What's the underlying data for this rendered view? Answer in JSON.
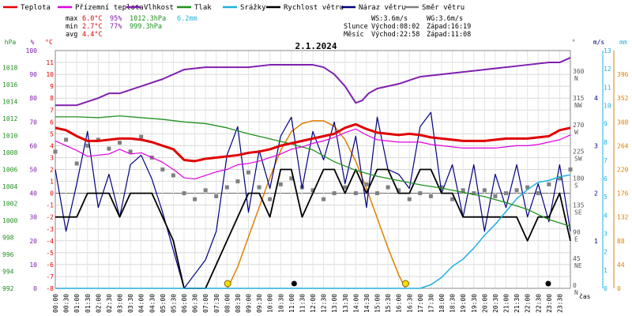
{
  "chart_data": {
    "type": "line",
    "title": "2.1.2024",
    "time_axis_label": "čas",
    "x_start_time": "00:00",
    "x_end_time": "24:00",
    "x_tick_labels": [
      "00:00",
      "00:30",
      "01:00",
      "01:30",
      "02:00",
      "02:30",
      "03:00",
      "03:30",
      "04:00",
      "04:30",
      "05:00",
      "05:30",
      "06:00",
      "06:30",
      "07:00",
      "07:30",
      "08:00",
      "08:30",
      "09:00",
      "09:30",
      "10:00",
      "10:30",
      "11:00",
      "11:30",
      "12:00",
      "12:30",
      "13:00",
      "13:30",
      "14:00",
      "14:30",
      "15:00",
      "15:30",
      "16:00",
      "16:30",
      "17:00",
      "17:30",
      "18:00",
      "18:30",
      "19:00",
      "19:30",
      "20:00",
      "20:30",
      "21:00",
      "21:30",
      "22:00",
      "22:30",
      "23:00",
      "23:30"
    ],
    "legend": [
      {
        "name": "Teplota",
        "color": "#e00000"
      },
      {
        "name": "Přízemní teplota",
        "color": "#e000e0"
      },
      {
        "name": "Vlhkost",
        "color": "#8020b0"
      },
      {
        "name": "Tlak",
        "color": "#209020"
      },
      {
        "name": "Srážky",
        "color": "#20b0e0"
      },
      {
        "name": "Rychlost větru",
        "color": "#000000"
      },
      {
        "name": "Náraz větru",
        "color": "#000080"
      },
      {
        "name": "Směr větru",
        "color": "#808080"
      }
    ],
    "stats": {
      "rows": [
        {
          "label": "max",
          "temp": "6.0°C",
          "hum": "95%",
          "press": "1012.3hPa",
          "rain": "6.2mm"
        },
        {
          "label": "min",
          "temp": "2.7°C",
          "hum": "77%",
          "press": "999.3hPa",
          "rain": ""
        },
        {
          "label": "avg",
          "temp": "4.4°C",
          "hum": "",
          "press": "",
          "rain": ""
        }
      ],
      "ws": "WS:3.6m/s",
      "wg": "WG:3.6m/s",
      "slunce_label": "Slunce",
      "slunce_rise": "Východ:08:02",
      "slunce_set": "Západ:16:19",
      "mesic_label": "Měsíc",
      "mesic_rise": "Východ:22:58",
      "mesic_set": "Západ:11:08"
    },
    "axes": {
      "hpa": {
        "unit": "hPa",
        "min": 992,
        "max": 1020,
        "ticks": [
          992,
          994,
          996,
          998,
          1000,
          1002,
          1004,
          1006,
          1008,
          1010,
          1012,
          1014,
          1016,
          1018
        ]
      },
      "humidity": {
        "unit": "%",
        "min": 0,
        "max": 100,
        "ticks": [
          0,
          10,
          20,
          30,
          40,
          50,
          60,
          70,
          80,
          90,
          100
        ]
      },
      "temperature": {
        "unit": "°C",
        "min": -8,
        "max": 12,
        "ticks": [
          -8,
          -7,
          -6,
          -5,
          -4,
          -3,
          -2,
          -1,
          0,
          1,
          2,
          3,
          4,
          5,
          6,
          7,
          8,
          9,
          10,
          11
        ]
      },
      "direction": {
        "unit": "°",
        "min": 0,
        "max": 400,
        "ticks": [
          {
            "v": 0,
            "l": "0",
            "c": "N"
          },
          {
            "v": 45,
            "l": "45",
            "c": "NE"
          },
          {
            "v": 90,
            "l": "90",
            "c": "E"
          },
          {
            "v": 135,
            "l": "135",
            "c": "SE"
          },
          {
            "v": 180,
            "l": "180",
            "c": "S"
          },
          {
            "v": 225,
            "l": "225",
            "c": "SW"
          },
          {
            "v": 270,
            "l": "270",
            "c": "W"
          },
          {
            "v": 315,
            "l": "315",
            "c": "NW"
          },
          {
            "v": 360,
            "l": "360",
            "c": "N"
          }
        ]
      },
      "wind": {
        "unit": "m/s",
        "min": 0,
        "max": 5,
        "ticks": [
          1,
          2,
          3,
          4
        ]
      },
      "rain": {
        "unit": "mm",
        "min": 0,
        "max": 13,
        "ticks": [
          0,
          1,
          2,
          3,
          4,
          5,
          6,
          7,
          8,
          9,
          10,
          11,
          12,
          13
        ]
      },
      "radiation": {
        "unit": "",
        "min": 0,
        "max": 440,
        "ticks": [
          0,
          44,
          88,
          132,
          176,
          220,
          264,
          308,
          352,
          396
        ]
      }
    },
    "series": [
      {
        "name": "Teplota",
        "axis": "temperature",
        "color": "#e00000",
        "x": [
          0,
          0.5,
          1,
          1.5,
          2,
          2.5,
          3,
          3.5,
          4,
          4.5,
          5,
          5.5,
          6,
          6.5,
          7,
          7.5,
          8,
          8.5,
          9,
          9.5,
          10,
          10.5,
          11,
          11.5,
          12,
          12.5,
          13,
          13.5,
          14,
          14.5,
          15,
          15.5,
          16,
          16.5,
          17,
          17.5,
          18,
          18.5,
          19,
          19.5,
          20,
          20.5,
          21,
          21.5,
          22,
          22.5,
          23,
          23.5,
          24
        ],
        "y": [
          5.5,
          5.3,
          4.8,
          4.4,
          4.4,
          4.5,
          4.6,
          4.6,
          4.5,
          4.3,
          4.0,
          3.7,
          2.8,
          2.7,
          2.9,
          3.0,
          3.1,
          3.2,
          3.4,
          3.5,
          3.7,
          4.0,
          4.2,
          4.4,
          4.6,
          4.8,
          5.0,
          5.5,
          5.8,
          5.4,
          5.1,
          5.0,
          4.9,
          5.0,
          4.9,
          4.7,
          4.6,
          4.5,
          4.4,
          4.4,
          4.4,
          4.5,
          4.6,
          4.6,
          4.6,
          4.7,
          4.8,
          5.3,
          5.5
        ]
      },
      {
        "name": "Přízemní teplota",
        "axis": "temperature",
        "color": "#e000e0",
        "x": [
          0,
          0.5,
          1,
          1.5,
          2,
          2.5,
          3,
          3.5,
          4,
          4.5,
          5,
          5.5,
          6,
          6.5,
          7,
          7.5,
          8,
          8.5,
          9,
          9.5,
          10,
          10.5,
          11,
          11.5,
          12,
          12.5,
          13,
          13.5,
          14,
          14.5,
          15,
          15.5,
          16,
          16.5,
          17,
          17.5,
          18,
          18.5,
          19,
          19.5,
          20,
          20.5,
          21,
          21.5,
          22,
          22.5,
          23,
          23.5,
          24
        ],
        "y": [
          4.4,
          4.0,
          3.6,
          3.1,
          3.2,
          3.3,
          3.7,
          3.3,
          3.4,
          3.0,
          2.6,
          2.0,
          1.3,
          1.2,
          1.5,
          1.8,
          2.0,
          2.4,
          2.5,
          2.7,
          3.0,
          3.3,
          3.7,
          3.9,
          4.2,
          4.4,
          4.7,
          5.1,
          5.4,
          4.9,
          4.5,
          4.4,
          4.3,
          4.3,
          4.3,
          4.1,
          4.0,
          3.9,
          3.8,
          3.8,
          3.8,
          3.8,
          3.9,
          4.0,
          4.0,
          4.1,
          4.3,
          4.5,
          4.9
        ]
      },
      {
        "name": "Vlhkost",
        "axis": "humidity",
        "color": "#8020b0",
        "x": [
          0,
          1,
          2,
          2.5,
          3,
          4,
          5,
          6,
          7,
          8,
          9,
          10,
          11,
          12,
          12.5,
          13,
          13.5,
          14,
          14.3,
          14.6,
          15,
          16,
          17,
          18,
          19,
          20,
          21,
          22,
          23,
          23.5,
          24
        ],
        "y": [
          77,
          77,
          80,
          82,
          82,
          85,
          88,
          92,
          93,
          93,
          93,
          94,
          94,
          94,
          93,
          90,
          85,
          78,
          79,
          82,
          84,
          86,
          89,
          90,
          91,
          92,
          93,
          94,
          95,
          95,
          97
        ]
      },
      {
        "name": "Tlak",
        "axis": "hpa",
        "color": "#209020",
        "x": [
          0,
          1,
          2,
          3,
          4,
          5,
          6,
          7,
          8,
          9,
          10,
          11,
          12,
          13,
          14,
          15,
          16,
          17,
          18,
          19,
          20,
          21,
          22,
          23,
          24
        ],
        "y": [
          1012.2,
          1012.2,
          1012.1,
          1012.3,
          1012.1,
          1011.9,
          1011.6,
          1011.4,
          1010.9,
          1010.2,
          1009.6,
          1009.0,
          1008.3,
          1006.9,
          1005.9,
          1005.2,
          1004.7,
          1004.2,
          1003.8,
          1003.3,
          1002.8,
          1002.1,
          1001.3,
          1000.1,
          999.3
        ]
      },
      {
        "name": "Srážky",
        "axis": "rain",
        "color": "#20b0e0",
        "x": [
          0,
          16.5,
          17,
          17.5,
          18,
          18.5,
          19,
          19.5,
          20,
          20.5,
          21,
          21.5,
          22,
          22.5,
          23,
          23.5,
          24
        ],
        "y": [
          0,
          0,
          0,
          0.2,
          0.6,
          1.2,
          1.6,
          2.2,
          2.9,
          3.5,
          4.2,
          4.9,
          5.4,
          5.8,
          5.9,
          6.1,
          6.2
        ]
      },
      {
        "name": "Rychlost větru",
        "axis": "wind",
        "color": "#000000",
        "x": [
          0,
          1,
          1.5,
          2,
          2.5,
          3,
          3.5,
          4,
          4.5,
          5,
          5.5,
          6,
          7,
          7.5,
          8,
          8.5,
          9,
          9.5,
          10,
          10.5,
          11,
          11.5,
          12,
          12.5,
          13,
          13.5,
          14,
          14.5,
          15,
          15.5,
          16,
          16.5,
          17,
          17.5,
          18,
          18.5,
          19,
          19.5,
          20,
          20.5,
          21,
          21.5,
          22,
          22.5,
          23,
          23.5,
          24
        ],
        "y": [
          1.5,
          1.5,
          2.0,
          2.0,
          2.0,
          1.5,
          2.0,
          2.0,
          2.0,
          1.5,
          1.0,
          0,
          0,
          0.5,
          1.0,
          1.5,
          2.0,
          2.0,
          1.5,
          2.5,
          2.5,
          1.5,
          2.0,
          2.5,
          2.5,
          2.0,
          2.5,
          2.0,
          2.5,
          2.5,
          2.0,
          2.0,
          2.5,
          2.5,
          2.0,
          2.0,
          1.5,
          1.5,
          1.5,
          1.5,
          1.5,
          1.5,
          1.0,
          1.5,
          1.5,
          2.0,
          1.0
        ]
      },
      {
        "name": "Náraz větru",
        "axis": "wind",
        "color": "#000080",
        "x": [
          0,
          0.5,
          1,
          1.5,
          2,
          2.5,
          3,
          3.5,
          4,
          4.5,
          5,
          5.5,
          6,
          6.5,
          7,
          7.5,
          8,
          8.5,
          9,
          9.5,
          10,
          10.5,
          11,
          11.5,
          12,
          12.5,
          13,
          13.5,
          14,
          14.5,
          15,
          15.5,
          16,
          16.5,
          17,
          17.5,
          18,
          18.5,
          19,
          19.5,
          20,
          20.5,
          21,
          21.5,
          22,
          22.5,
          23,
          23.5,
          24
        ],
        "y": [
          2.5,
          1.2,
          2.2,
          3.3,
          1.7,
          2.4,
          1.5,
          2.6,
          2.8,
          2.3,
          1.6,
          0.8,
          0,
          0.3,
          0.6,
          1.2,
          2.8,
          3.4,
          1.6,
          2.9,
          2.1,
          3.2,
          3.6,
          2.1,
          3.3,
          2.7,
          3.5,
          2.2,
          3.2,
          1.7,
          3.6,
          2.5,
          2.4,
          2.1,
          3.4,
          3.7,
          2.0,
          2.6,
          1.5,
          2.6,
          1.2,
          2.4,
          1.7,
          2.6,
          1.5,
          2.2,
          1.4,
          2.6,
          1.2
        ]
      },
      {
        "name": "Směr větru",
        "axis": "direction",
        "color": "#808080",
        "style": "dots",
        "x": [
          0,
          0.5,
          1,
          1.5,
          2,
          2.5,
          3,
          3.5,
          4,
          4.5,
          5,
          5.5,
          6,
          6.5,
          7,
          7.5,
          8,
          8.5,
          9,
          9.5,
          10,
          10.5,
          11,
          11.5,
          12,
          12.5,
          13,
          13.5,
          14,
          14.5,
          15,
          15.5,
          16,
          16.5,
          17,
          17.5,
          18,
          18.5,
          19,
          19.5,
          20,
          20.5,
          21,
          21.5,
          22,
          22.5,
          23,
          23.5,
          24
        ],
        "y": [
          230,
          250,
          210,
          240,
          250,
          235,
          245,
          230,
          255,
          220,
          200,
          190,
          160,
          150,
          165,
          155,
          170,
          180,
          195,
          170,
          150,
          175,
          185,
          170,
          165,
          150,
          160,
          170,
          160,
          175,
          160,
          170,
          165,
          150,
          160,
          155,
          170,
          150,
          165,
          160,
          165,
          155,
          160,
          165,
          170,
          160,
          175,
          185,
          200
        ]
      }
    ],
    "radiation": {
      "name": "Sluneční záření",
      "axis": "radiation",
      "color": "#e08000",
      "x": [
        8.03,
        8.5,
        9,
        9.5,
        10,
        10.5,
        11,
        11.5,
        12,
        12.5,
        13,
        13.5,
        14,
        14.5,
        15,
        15.5,
        16,
        16.32
      ],
      "y": [
        0,
        40,
        95,
        150,
        205,
        255,
        290,
        305,
        310,
        310,
        300,
        275,
        235,
        185,
        130,
        75,
        25,
        0
      ]
    },
    "markers": {
      "sunrise": 8.03,
      "sunset": 16.32,
      "moonset": 11.13,
      "moonrise": 22.97
    }
  }
}
